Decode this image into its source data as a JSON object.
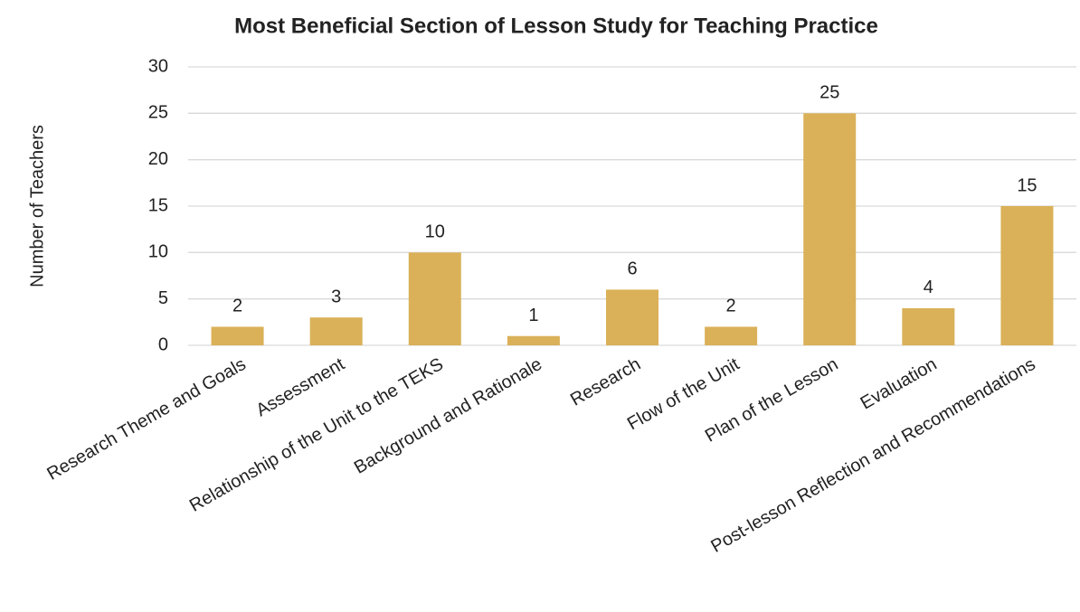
{
  "chart_data": {
    "type": "bar",
    "title": "Most Beneficial Section of Lesson Study for Teaching Practice",
    "y_label": "Number of Teachers",
    "categories": [
      "Research Theme and Goals",
      "Assessment",
      "Relationship of the Unit to the TEKS",
      "Background and Rationale",
      "Research",
      "Flow of the Unit",
      "Plan of the Lesson",
      "Evaluation",
      "Post-lesson Reflection and Recommendations"
    ],
    "values": [
      2,
      3,
      10,
      1,
      6,
      2,
      25,
      4,
      15
    ],
    "color": "#dab158",
    "ylim": [
      0,
      30
    ],
    "yticks": [
      0,
      5,
      10,
      15,
      20,
      25,
      30
    ],
    "grid": true
  }
}
